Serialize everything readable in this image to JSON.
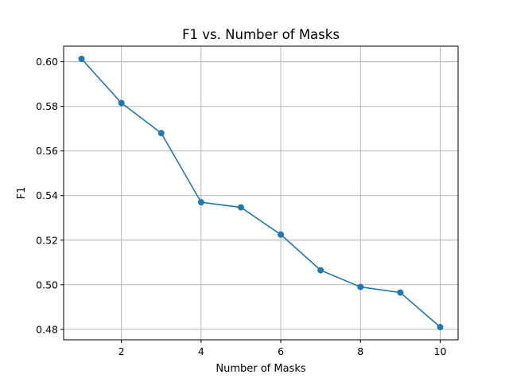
{
  "chart_data": {
    "type": "line",
    "title": "F1 vs. Number of Masks",
    "xlabel": "Number of Masks",
    "ylabel": "F1",
    "x": [
      1,
      2,
      3,
      4,
      5,
      6,
      7,
      8,
      9,
      10
    ],
    "series": [
      {
        "values": [
          0.6013,
          0.5815,
          0.568,
          0.537,
          0.5347,
          0.5225,
          0.5065,
          0.499,
          0.4965,
          0.481
        ],
        "color": "#1f77b4",
        "marker": "circle"
      }
    ],
    "xlim": [
      0.55,
      10.45
    ],
    "ylim": [
      0.4753,
      0.607
    ],
    "xticks": [
      2,
      4,
      6,
      8,
      10
    ],
    "yticks": [
      0.48,
      0.5,
      0.52,
      0.54,
      0.56,
      0.58,
      0.6
    ],
    "xtick_labels": [
      "2",
      "4",
      "6",
      "8",
      "10"
    ],
    "ytick_labels": [
      "0.48",
      "0.50",
      "0.52",
      "0.54",
      "0.56",
      "0.58",
      "0.60"
    ],
    "grid": true,
    "legend": "none"
  }
}
